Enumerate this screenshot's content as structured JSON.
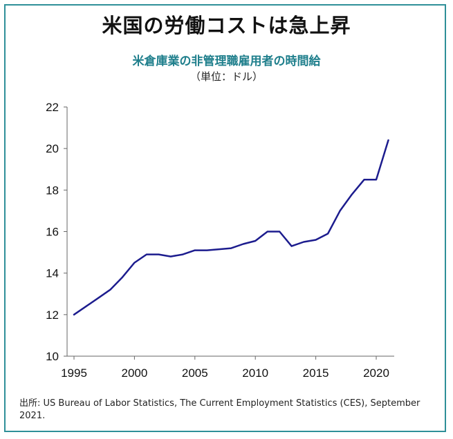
{
  "title": "米国の労働コストは急上昇",
  "subtitle": "米倉庫業の非管理職雇用者の時間給",
  "unit_label": "（単位：ドル）",
  "source": "出所: US Bureau of Labor Statistics, The Current Employment Statistics (CES), September 2021.",
  "colors": {
    "frame": "#2e8f98",
    "subtitle": "#1f7f8c",
    "line": "#1c1c8e"
  },
  "chart_data": {
    "type": "line",
    "title": "米倉庫業の非管理職雇用者の時間給",
    "xlabel": "",
    "ylabel": "",
    "xlim": [
      1995,
      2021
    ],
    "ylim": [
      10,
      22
    ],
    "xticks": [
      1995,
      2000,
      2005,
      2010,
      2015,
      2020
    ],
    "yticks": [
      10,
      12,
      14,
      16,
      18,
      20,
      22
    ],
    "grid": false,
    "series": [
      {
        "x": [
          1995,
          1996,
          1997,
          1998,
          1999,
          2000,
          2001,
          2002,
          2003,
          2004,
          2005,
          2006,
          2007,
          2008,
          2009,
          2010,
          2011,
          2012,
          2013,
          2014,
          2015,
          2016,
          2017,
          2018,
          2019,
          2020,
          2021
        ],
        "values": [
          12.0,
          12.4,
          12.8,
          13.2,
          13.8,
          14.5,
          14.9,
          14.9,
          14.8,
          14.9,
          15.1,
          15.1,
          15.15,
          15.2,
          15.4,
          15.55,
          16.0,
          16.0,
          15.3,
          15.5,
          15.6,
          15.9,
          17.0,
          17.8,
          18.5,
          18.5,
          20.4
        ]
      }
    ]
  }
}
